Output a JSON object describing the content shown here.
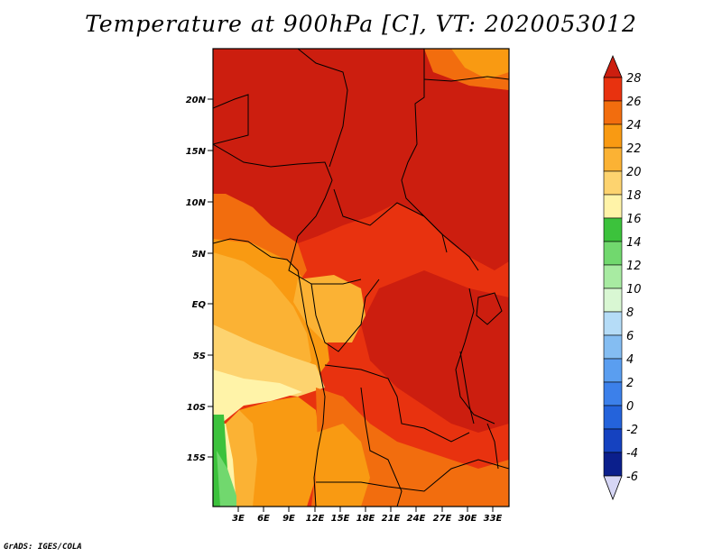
{
  "title": "Temperature at 900hPa [C], VT: 2020053012",
  "credit": "GrADS: IGES/COLA",
  "map": {
    "lat_ticks": [
      "20N",
      "15N",
      "10N",
      "5N",
      "EQ",
      "5S",
      "10S",
      "15S"
    ],
    "lon_ticks": [
      "3E",
      "6E",
      "9E",
      "12E",
      "15E",
      "18E",
      "21E",
      "24E",
      "27E",
      "30E",
      "33E"
    ]
  },
  "colorbar": {
    "levels": [
      28,
      26,
      24,
      22,
      20,
      18,
      16,
      14,
      12,
      10,
      8,
      6,
      4,
      2,
      0,
      -2,
      -4,
      -6
    ],
    "colors": {
      "above_28": "#cc1e0f",
      "26_28": "#e8320f",
      "24_26": "#f26d0e",
      "22_24": "#f99a12",
      "20_22": "#fbb234",
      "18_20": "#fdd36f",
      "16_18": "#fff3a8",
      "14_16": "#3cc23c",
      "12_14": "#71d86e",
      "10_12": "#a8eba2",
      "8_10": "#d9f7d3",
      "6_8": "#b5dcf7",
      "4_6": "#84bdf2",
      "2_4": "#5a9ef0",
      "0_2": "#3c80ea",
      "m2_0": "#2463db",
      "m4_m2": "#1542c0",
      "m6_m4": "#0b1f8c",
      "below_m6": "#d6d6f5"
    }
  }
}
